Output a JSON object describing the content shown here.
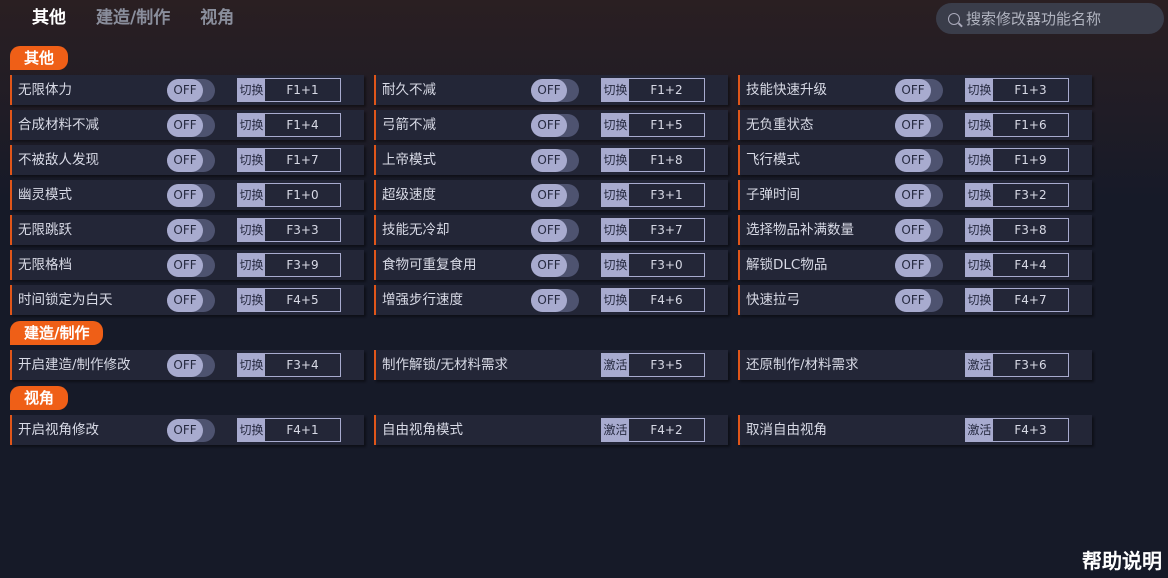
{
  "tabs": [
    {
      "label": "其他",
      "active": true
    },
    {
      "label": "建造/制作"
    },
    {
      "label": "视角"
    }
  ],
  "search": {
    "placeholder": "搜索修改器功能名称"
  },
  "toggle_label": "OFF",
  "help": "帮助说明",
  "accent": "#ef5f17",
  "sections": [
    {
      "title": "其他",
      "items": [
        {
          "name": "无限体力",
          "type": "切换",
          "key": "F1+1",
          "toggle": true
        },
        {
          "name": "耐久不减",
          "type": "切换",
          "key": "F1+2",
          "toggle": true
        },
        {
          "name": "技能快速升级",
          "type": "切换",
          "key": "F1+3",
          "toggle": true
        },
        {
          "name": "合成材料不减",
          "type": "切换",
          "key": "F1+4",
          "toggle": true
        },
        {
          "name": "弓箭不减",
          "type": "切换",
          "key": "F1+5",
          "toggle": true
        },
        {
          "name": "无负重状态",
          "type": "切换",
          "key": "F1+6",
          "toggle": true
        },
        {
          "name": "不被敌人发现",
          "type": "切换",
          "key": "F1+7",
          "toggle": true
        },
        {
          "name": "上帝模式",
          "type": "切换",
          "key": "F1+8",
          "toggle": true
        },
        {
          "name": "飞行模式",
          "type": "切换",
          "key": "F1+9",
          "toggle": true
        },
        {
          "name": "幽灵模式",
          "type": "切换",
          "key": "F1+0",
          "toggle": true
        },
        {
          "name": "超级速度",
          "type": "切换",
          "key": "F3+1",
          "toggle": true
        },
        {
          "name": "子弹时间",
          "type": "切换",
          "key": "F3+2",
          "toggle": true
        },
        {
          "name": "无限跳跃",
          "type": "切换",
          "key": "F3+3",
          "toggle": true
        },
        {
          "name": "技能无冷却",
          "type": "切换",
          "key": "F3+7",
          "toggle": true
        },
        {
          "name": "选择物品补满数量",
          "type": "切换",
          "key": "F3+8",
          "toggle": true
        },
        {
          "name": "无限格档",
          "type": "切换",
          "key": "F3+9",
          "toggle": true
        },
        {
          "name": "食物可重复食用",
          "type": "切换",
          "key": "F3+0",
          "toggle": true
        },
        {
          "name": "解锁DLC物品",
          "type": "切换",
          "key": "F4+4",
          "toggle": true
        },
        {
          "name": "时间锁定为白天",
          "type": "切换",
          "key": "F4+5",
          "toggle": true
        },
        {
          "name": "增强步行速度",
          "type": "切换",
          "key": "F4+6",
          "toggle": true
        },
        {
          "name": "快速拉弓",
          "type": "切换",
          "key": "F4+7",
          "toggle": true
        }
      ]
    },
    {
      "title": "建造/制作",
      "items": [
        {
          "name": "开启建造/制作修改",
          "type": "切换",
          "key": "F3+4",
          "toggle": true
        },
        {
          "name": "制作解锁/无材料需求",
          "type": "激活",
          "key": "F3+5",
          "toggle": false
        },
        {
          "name": "还原制作/材料需求",
          "type": "激活",
          "key": "F3+6",
          "toggle": false
        }
      ]
    },
    {
      "title": "视角",
      "items": [
        {
          "name": "开启视角修改",
          "type": "切换",
          "key": "F4+1",
          "toggle": true
        },
        {
          "name": "自由视角模式",
          "type": "激活",
          "key": "F4+2",
          "toggle": false
        },
        {
          "name": "取消自由视角",
          "type": "激活",
          "key": "F4+3",
          "toggle": false
        }
      ]
    }
  ]
}
